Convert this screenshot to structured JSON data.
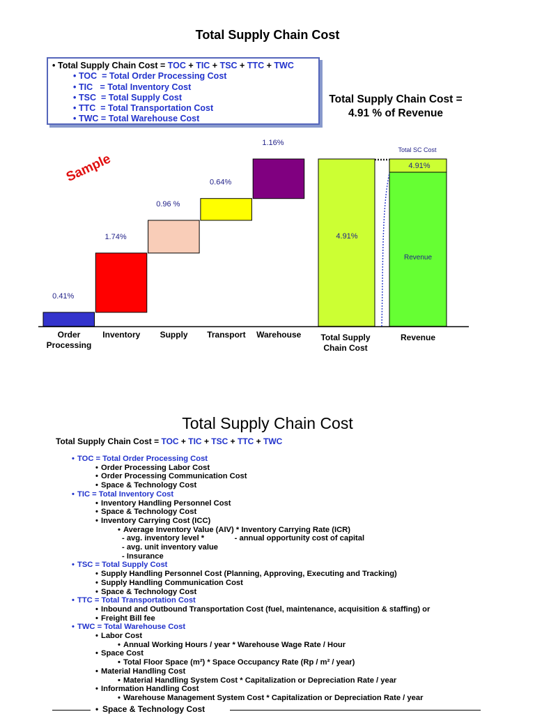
{
  "title": "Total Supply Chain Cost",
  "summary_box": {
    "formula": [
      "Total Supply Chain Cost = ",
      "TOC",
      " + ",
      "TIC",
      " + ",
      "TSC",
      " + ",
      "TTC",
      " + ",
      "TWC"
    ],
    "definitions": [
      "TOC  = Total Order Processing Cost",
      "TIC   = Total Inventory Cost",
      "TSC  = Total Supply Cost",
      "TTC  = Total Transportation Cost",
      "TWC = Total Warehouse Cost"
    ]
  },
  "headline": [
    "Total Supply Chain Cost =",
    "4.91 % of Revenue"
  ],
  "watermark": "Sample",
  "chart_data": {
    "type": "waterfall",
    "categories": [
      "Order Processing",
      "Inventory",
      "Supply",
      "Transport",
      "Warehouse"
    ],
    "values": [
      0.41,
      1.74,
      0.96,
      0.64,
      1.16
    ],
    "value_labels": [
      "0.41%",
      "1.74%",
      "0.96 %",
      "0.64%",
      "1.16%"
    ],
    "colors": [
      "#3333cc",
      "#ff0000",
      "#f9cdb8",
      "#ffff00",
      "#800080"
    ],
    "total": {
      "label": "Total Supply Chain Cost",
      "value": 4.91,
      "value_label": "4.91%",
      "color": "#ccff33"
    },
    "revenue": {
      "label": "Revenue",
      "inner_label": "Revenue",
      "share_title": "Total SC Cost",
      "share": "4.91%",
      "color": "#66ff33",
      "share_color": "#ccff33"
    }
  },
  "section": {
    "title": "Total Supply Chain Cost",
    "formula": [
      "Total Supply Chain Cost = ",
      "TOC",
      " + ",
      "TIC",
      " + ",
      "TSC",
      " + ",
      "TTC",
      " + ",
      "TWC"
    ],
    "items": [
      {
        "level": 1,
        "text": "TOC = Total Order Processing Cost"
      },
      {
        "level": 2,
        "text": "Order Processing Labor Cost"
      },
      {
        "level": 2,
        "text": "Order Processing Communication Cost"
      },
      {
        "level": 2,
        "text": "Space & Technology Cost"
      },
      {
        "level": 1,
        "text": "TIC = Total Inventory Cost"
      },
      {
        "level": 2,
        "text": "Inventory Handling Personnel Cost"
      },
      {
        "level": 2,
        "text": "Space & Technology Cost"
      },
      {
        "level": 2,
        "text": "Inventory Carrying Cost (ICC)"
      },
      {
        "level": 3,
        "text": "Average Inventory Value (AIV) * Inventory Carrying Rate (ICR)"
      },
      {
        "level": 4,
        "text": "- avg. inventory level *              - annual opportunity cost of capital"
      },
      {
        "level": 4,
        "text": "- avg. unit inventory value"
      },
      {
        "level": 4,
        "text": "- Insurance"
      },
      {
        "level": 1,
        "text": "TSC = Total Supply Cost"
      },
      {
        "level": 2,
        "text": "Supply Handling Personnel Cost (Planning, Approving, Executing and Tracking)"
      },
      {
        "level": 2,
        "text": "Supply Handling Communication Cost"
      },
      {
        "level": 2,
        "text": "Space & Technology Cost"
      },
      {
        "level": 1,
        "text": "TTC = Total Transportation Cost"
      },
      {
        "level": 2,
        "text": "Inbound and Outbound Transportation Cost (fuel, maintenance, acquisition & staffing) or"
      },
      {
        "level": 2,
        "text": "Freight Bill fee"
      },
      {
        "level": 1,
        "text": "TWC = Total Warehouse Cost"
      },
      {
        "level": 2,
        "text": "Labor Cost"
      },
      {
        "level": 3,
        "text": "Annual Working Hours / year * Warehouse Wage Rate / Hour"
      },
      {
        "level": 2,
        "text": "Space Cost"
      },
      {
        "level": 3,
        "text": "Total Floor Space (m²) * Space Occupancy Rate (Rp / m² / year)"
      },
      {
        "level": 2,
        "text": "Material Handling Cost"
      },
      {
        "level": 3,
        "text": "Material Handling System Cost * Capitalization or Depreciation Rate / year"
      },
      {
        "level": 2,
        "text": "Information Handling Cost"
      },
      {
        "level": 3,
        "text": "Warehouse Management System Cost * Capitalization or Depreciation Rate / year"
      }
    ],
    "footer": "Space & Technology Cost"
  }
}
